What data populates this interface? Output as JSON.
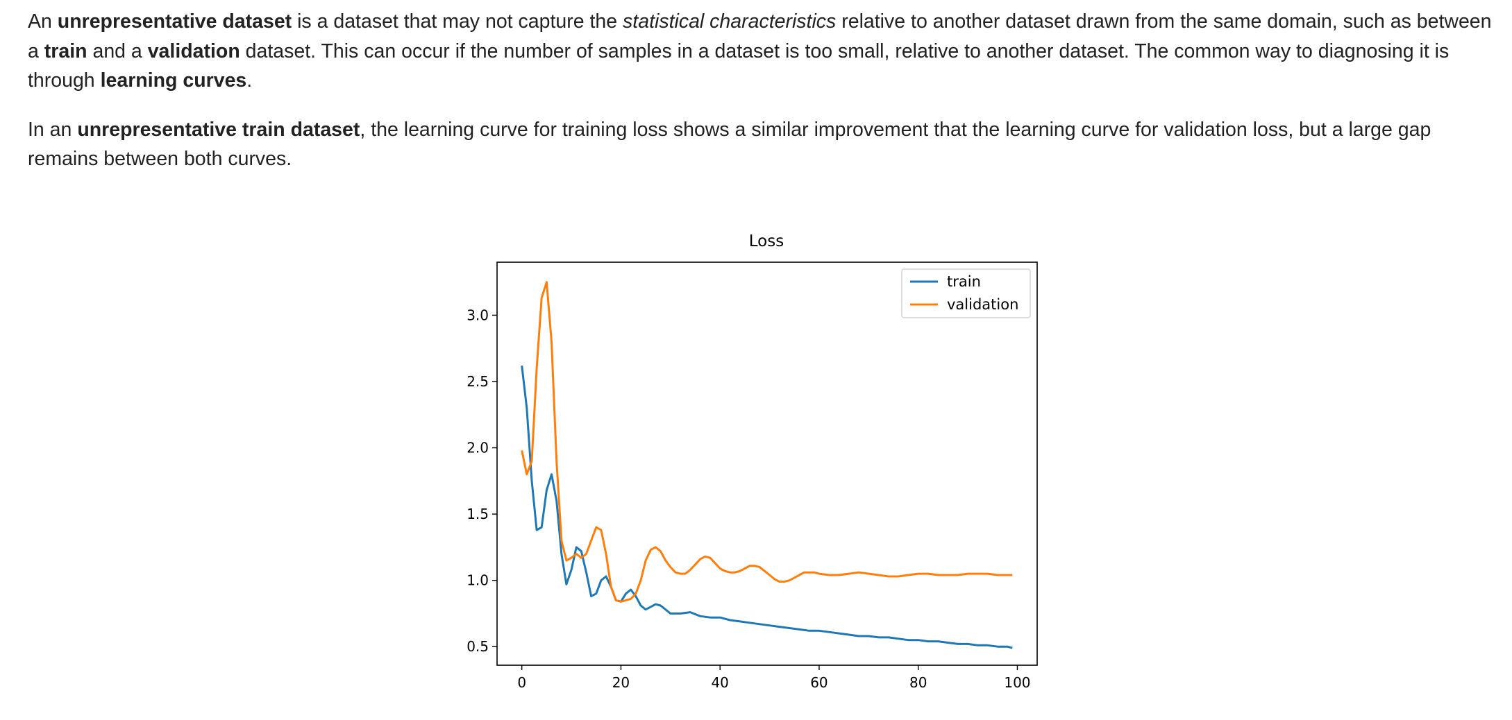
{
  "paragraphs": [
    {
      "segments": [
        {
          "text": "An ",
          "style": "normal"
        },
        {
          "text": "unrepresentative dataset",
          "style": "bold"
        },
        {
          "text": " is a dataset that may not capture the ",
          "style": "normal"
        },
        {
          "text": "statistical characteristics",
          "style": "italic"
        },
        {
          "text": " relative to another dataset drawn from the same domain, such as between a ",
          "style": "normal"
        },
        {
          "text": "train",
          "style": "bold"
        },
        {
          "text": " and a ",
          "style": "normal"
        },
        {
          "text": "validation",
          "style": "bold"
        },
        {
          "text": " dataset. This can occur if the number of samples in a dataset is too small, relative to another dataset. The common way to diagnosing it is through ",
          "style": "normal"
        },
        {
          "text": "learning curves",
          "style": "bold"
        },
        {
          "text": ".",
          "style": "normal"
        }
      ]
    },
    {
      "segments": [
        {
          "text": "In an ",
          "style": "normal"
        },
        {
          "text": "unrepresentative train dataset",
          "style": "bold"
        },
        {
          "text": ", the learning curve for training loss shows a similar improvement that the learning curve for validation loss, but a large gap remains between both curves.",
          "style": "normal"
        }
      ]
    }
  ],
  "chart_data": {
    "type": "line",
    "title": "Loss",
    "xlabel": "",
    "ylabel": "",
    "xlim": [
      -5,
      104
    ],
    "ylim": [
      0.36,
      3.4
    ],
    "xticks": [
      0,
      20,
      40,
      60,
      80,
      100
    ],
    "yticks": [
      0.5,
      1.0,
      1.5,
      2.0,
      2.5,
      3.0
    ],
    "xtick_labels": [
      "0",
      "20",
      "40",
      "60",
      "80",
      "100"
    ],
    "ytick_labels": [
      "0.5",
      "1.0",
      "1.5",
      "2.0",
      "2.5",
      "3.0"
    ],
    "legend_position": "top-right",
    "grid": false,
    "series": [
      {
        "name": "train",
        "color": "#1f77b4",
        "x": [
          0,
          1,
          2,
          3,
          4,
          5,
          6,
          7,
          8,
          9,
          10,
          11,
          12,
          13,
          14,
          15,
          16,
          17,
          18,
          19,
          20,
          21,
          22,
          23,
          24,
          25,
          26,
          27,
          28,
          29,
          30,
          32,
          34,
          36,
          38,
          40,
          42,
          44,
          46,
          48,
          50,
          52,
          54,
          56,
          58,
          60,
          62,
          64,
          66,
          68,
          70,
          72,
          74,
          76,
          78,
          80,
          82,
          84,
          86,
          88,
          90,
          92,
          94,
          96,
          98,
          99
        ],
        "y": [
          2.62,
          2.3,
          1.75,
          1.38,
          1.4,
          1.68,
          1.8,
          1.6,
          1.2,
          0.97,
          1.08,
          1.25,
          1.22,
          1.06,
          0.88,
          0.9,
          1.0,
          1.03,
          0.95,
          0.85,
          0.84,
          0.9,
          0.93,
          0.88,
          0.81,
          0.78,
          0.8,
          0.82,
          0.81,
          0.78,
          0.75,
          0.75,
          0.76,
          0.73,
          0.72,
          0.72,
          0.7,
          0.69,
          0.68,
          0.67,
          0.66,
          0.65,
          0.64,
          0.63,
          0.62,
          0.62,
          0.61,
          0.6,
          0.59,
          0.58,
          0.58,
          0.57,
          0.57,
          0.56,
          0.55,
          0.55,
          0.54,
          0.54,
          0.53,
          0.52,
          0.52,
          0.51,
          0.51,
          0.5,
          0.5,
          0.49
        ]
      },
      {
        "name": "validation",
        "color": "#ff7f0e",
        "x": [
          0,
          1,
          2,
          3,
          4,
          5,
          6,
          7,
          8,
          9,
          10,
          11,
          12,
          13,
          14,
          15,
          16,
          17,
          18,
          19,
          20,
          21,
          22,
          23,
          24,
          25,
          26,
          27,
          28,
          29,
          30,
          31,
          32,
          33,
          34,
          35,
          36,
          37,
          38,
          39,
          40,
          41,
          42,
          43,
          44,
          45,
          46,
          47,
          48,
          49,
          50,
          51,
          52,
          53,
          54,
          55,
          56,
          57,
          58,
          59,
          60,
          62,
          64,
          66,
          68,
          70,
          72,
          74,
          76,
          78,
          80,
          82,
          84,
          86,
          88,
          90,
          92,
          94,
          96,
          98,
          99
        ],
        "y": [
          1.98,
          1.8,
          1.9,
          2.6,
          3.13,
          3.25,
          2.8,
          1.9,
          1.3,
          1.15,
          1.17,
          1.2,
          1.17,
          1.2,
          1.3,
          1.4,
          1.38,
          1.2,
          0.95,
          0.85,
          0.84,
          0.85,
          0.86,
          0.9,
          1.0,
          1.15,
          1.23,
          1.25,
          1.22,
          1.15,
          1.1,
          1.06,
          1.05,
          1.05,
          1.08,
          1.12,
          1.16,
          1.18,
          1.17,
          1.13,
          1.09,
          1.07,
          1.06,
          1.06,
          1.07,
          1.09,
          1.11,
          1.11,
          1.1,
          1.07,
          1.04,
          1.01,
          0.99,
          0.99,
          1.0,
          1.02,
          1.04,
          1.06,
          1.06,
          1.06,
          1.05,
          1.04,
          1.04,
          1.05,
          1.06,
          1.05,
          1.04,
          1.03,
          1.03,
          1.04,
          1.05,
          1.05,
          1.04,
          1.04,
          1.04,
          1.05,
          1.05,
          1.05,
          1.04,
          1.04,
          1.04
        ]
      }
    ]
  }
}
